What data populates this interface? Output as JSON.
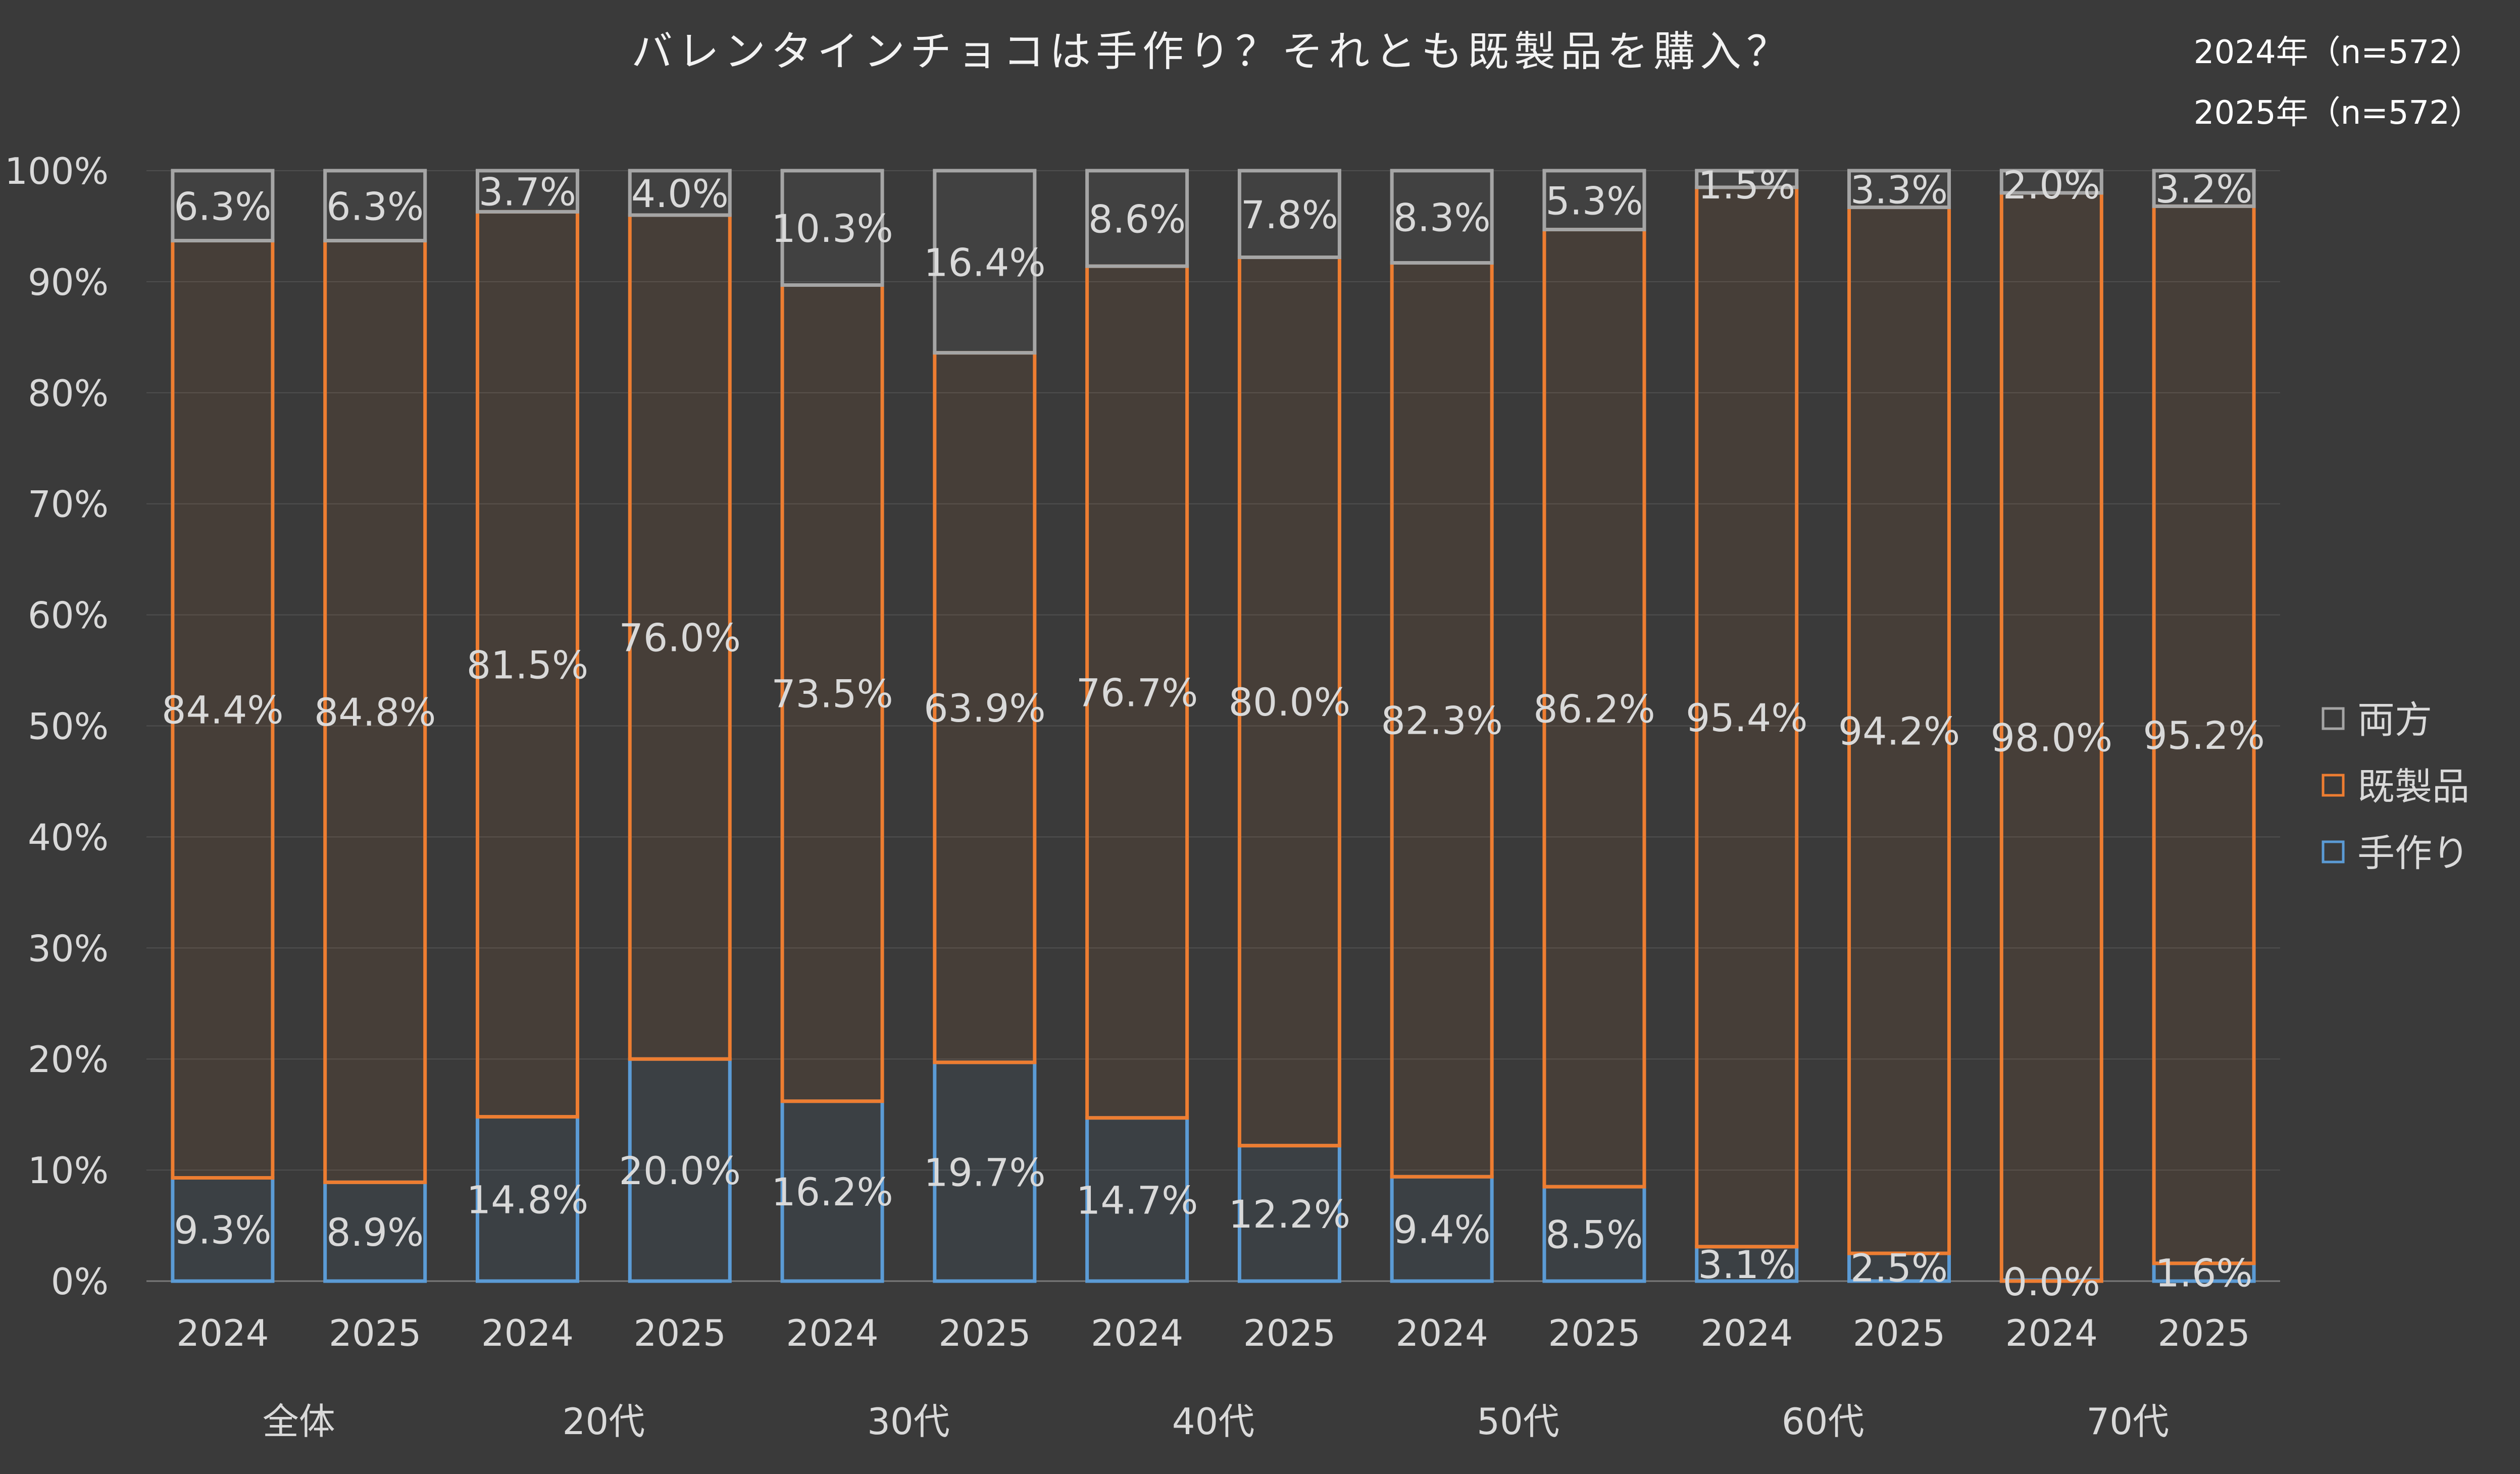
{
  "chart_data": {
    "type": "bar",
    "stacked": true,
    "percent": true,
    "title": "バレンタインチョコは手作り？それとも既製品を購入？",
    "sample_notes": [
      "2024年（n=572）",
      "2025年（n=572）"
    ],
    "categories": [
      "2024",
      "2025",
      "2024",
      "2025",
      "2024",
      "2025",
      "2024",
      "2025",
      "2024",
      "2025",
      "2024",
      "2025",
      "2024",
      "2025"
    ],
    "groups": [
      "全体",
      "20代",
      "30代",
      "40代",
      "50代",
      "60代",
      "70代"
    ],
    "series": [
      {
        "name": "手作り",
        "color": "#5b9bd5",
        "values": [
          9.3,
          8.9,
          14.8,
          20.0,
          16.2,
          19.7,
          14.7,
          12.2,
          9.4,
          8.5,
          3.1,
          2.5,
          0.0,
          1.6
        ]
      },
      {
        "name": "既製品",
        "color": "#ed7d31",
        "values": [
          84.4,
          84.8,
          81.5,
          76.0,
          73.5,
          63.9,
          76.7,
          80.0,
          82.3,
          86.2,
          95.4,
          94.2,
          98.0,
          95.2
        ]
      },
      {
        "name": "両方",
        "color": "#a5a5a5",
        "values": [
          6.3,
          6.3,
          3.7,
          4.0,
          10.3,
          16.4,
          8.6,
          7.8,
          8.3,
          5.3,
          1.5,
          3.3,
          2.0,
          3.2
        ]
      }
    ],
    "legend_order": [
      "両方",
      "既製品",
      "手作り"
    ],
    "yticks": [
      "0%",
      "10%",
      "20%",
      "30%",
      "40%",
      "50%",
      "60%",
      "70%",
      "80%",
      "90%",
      "100%"
    ],
    "ylim": [
      0,
      100
    ],
    "grid": true,
    "legend_position": "right"
  }
}
